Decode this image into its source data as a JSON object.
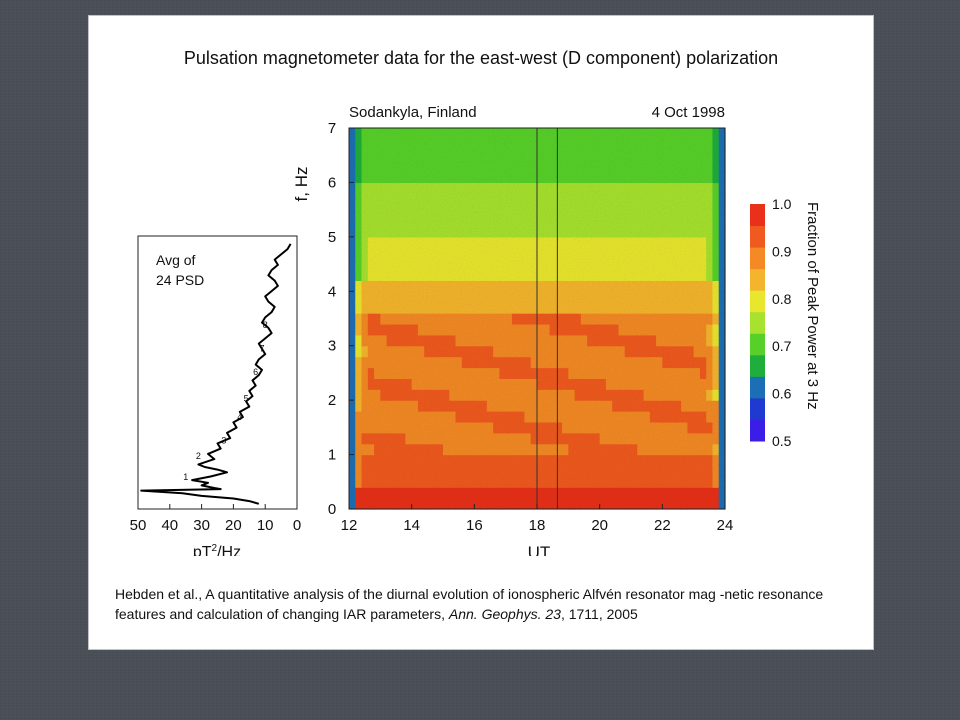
{
  "title": "Pulsation magnetometer data for the east-west (D component) polarization",
  "citation": {
    "text_before_journal": "Hebden et al., A quantitative analysis of the diurnal evolution of ionospheric Alfvén resonator mag -netic resonance features and calculation of changing IAR parameters, ",
    "journal": "Ann. Geophys. 23",
    "text_after_journal": ", 1711, 2005"
  },
  "chart_data": [
    {
      "type": "line",
      "name": "psd-panel",
      "annotation": "Avg of 24 PSD",
      "xlabel": "pT²/Hz",
      "ylabel": "",
      "xlim": [
        50,
        0
      ],
      "ylim": [
        0,
        5.2
      ],
      "x_ticks": [
        "50",
        "40",
        "30",
        "20",
        "10",
        "0"
      ],
      "x_tick_values": [
        50,
        40,
        30,
        20,
        10,
        0
      ],
      "harmonic_labels": [
        {
          "text": "1",
          "x": 35,
          "y": 0.55
        },
        {
          "text": "2",
          "x": 31,
          "y": 0.95
        },
        {
          "text": "3",
          "x": 23,
          "y": 1.25
        },
        {
          "text": "4",
          "x": 18,
          "y": 1.7
        },
        {
          "text": "5",
          "x": 16,
          "y": 2.05
        },
        {
          "text": "6",
          "x": 13,
          "y": 2.55
        },
        {
          "text": "7",
          "x": 11,
          "y": 3.0
        },
        {
          "text": "8",
          "x": 10,
          "y": 3.45
        }
      ],
      "series": [
        {
          "x": [
            2,
            3,
            5,
            7,
            6,
            8,
            9,
            7,
            6,
            8,
            10,
            9,
            7,
            8,
            10,
            11,
            9,
            8,
            10,
            12,
            11,
            10,
            12,
            13,
            11,
            12,
            14,
            13,
            15,
            14,
            16,
            15,
            18,
            17,
            20,
            19,
            22,
            21,
            25,
            24,
            28,
            26,
            31,
            29,
            25,
            22,
            27,
            33,
            28,
            30,
            26,
            24,
            49,
            36,
            30,
            20,
            15,
            12
          ],
          "y": [
            5.05,
            4.95,
            4.85,
            4.75,
            4.65,
            4.55,
            4.45,
            4.35,
            4.25,
            4.15,
            4.05,
            3.95,
            3.85,
            3.75,
            3.65,
            3.55,
            3.45,
            3.35,
            3.25,
            3.15,
            3.05,
            2.95,
            2.85,
            2.75,
            2.65,
            2.55,
            2.45,
            2.35,
            2.25,
            2.15,
            2.05,
            1.95,
            1.85,
            1.75,
            1.65,
            1.55,
            1.45,
            1.35,
            1.25,
            1.15,
            1.05,
            0.95,
            0.85,
            0.8,
            0.75,
            0.7,
            0.62,
            0.55,
            0.5,
            0.45,
            0.4,
            0.38,
            0.35,
            0.3,
            0.25,
            0.2,
            0.15,
            0.1
          ]
        }
      ]
    },
    {
      "type": "heatmap",
      "name": "spectrogram",
      "header_left": "Sodankyla, Finland",
      "header_right": "4 Oct 1998",
      "xlabel": "UT",
      "ylabel": "f,  Hz",
      "xlim": [
        12,
        24
      ],
      "ylim": [
        0,
        7
      ],
      "x_ticks": [
        "12",
        "14",
        "16",
        "18",
        "20",
        "22",
        "24"
      ],
      "x_tick_values": [
        12,
        14,
        16,
        18,
        20,
        22,
        24
      ],
      "y_ticks": [
        "0",
        "1",
        "2",
        "3",
        "4",
        "5",
        "6",
        "7"
      ],
      "y_tick_values": [
        0,
        1,
        2,
        3,
        4,
        5,
        6,
        7
      ],
      "vertical_lines_ut": [
        18.0,
        18.65
      ],
      "colorbar": {
        "label": "Fraction of Peak Power at 3 Hz",
        "min": 0.5,
        "max": 1.0,
        "ticks": [
          "1.0",
          "0.9",
          "0.8",
          "0.7",
          "0.6",
          "0.5"
        ],
        "tick_values": [
          1.0,
          0.9,
          0.8,
          0.7,
          0.6,
          0.5
        ],
        "colors": [
          "#3a1ee8",
          "#1f3ad0",
          "#1c6fb4",
          "#1fae3c",
          "#57d12a",
          "#a6e22e",
          "#e9e62e",
          "#f4b52c",
          "#f38a25",
          "#ef5a1f",
          "#e8301a"
        ]
      }
    }
  ]
}
